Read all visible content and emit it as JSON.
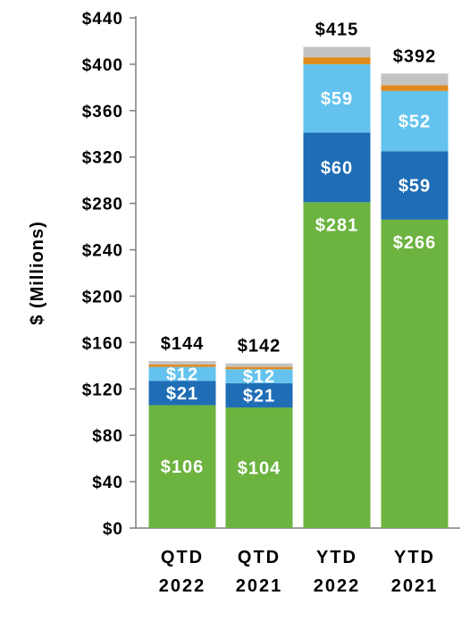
{
  "chart_data": {
    "type": "bar",
    "stacked": true,
    "ylabel": "$ (Millions)",
    "ylim": [
      0,
      440
    ],
    "ytick_step": 40,
    "ytick_prefix": "$",
    "categories": [
      [
        "QTD",
        "2022"
      ],
      [
        "QTD",
        "2021"
      ],
      [
        "YTD",
        "2022"
      ],
      [
        "YTD",
        "2021"
      ]
    ],
    "totals": [
      144,
      142,
      415,
      392
    ],
    "total_labels": [
      "$144",
      "$142",
      "$415",
      "$392"
    ],
    "series": [
      {
        "color": "#6CB33F",
        "values": [
          106,
          104,
          281,
          266
        ],
        "labels": [
          "$106",
          "$104",
          "$281",
          "$266"
        ]
      },
      {
        "color": "#1F6DB5",
        "values": [
          21,
          21,
          60,
          59
        ],
        "labels": [
          "$21",
          "$21",
          "$60",
          "$59"
        ]
      },
      {
        "color": "#63C3EE",
        "values": [
          12,
          12,
          59,
          52
        ],
        "labels": [
          "$12",
          "$12",
          "$59",
          "$52"
        ]
      },
      {
        "color": "#E08A1E",
        "values": [
          2,
          2,
          6,
          5
        ],
        "labels": [
          "",
          "",
          "",
          ""
        ]
      },
      {
        "color": "#C3C3C3",
        "values": [
          3,
          3,
          9,
          10
        ],
        "labels": [
          "",
          "",
          "",
          ""
        ]
      }
    ],
    "grid": false,
    "legend": "none"
  }
}
